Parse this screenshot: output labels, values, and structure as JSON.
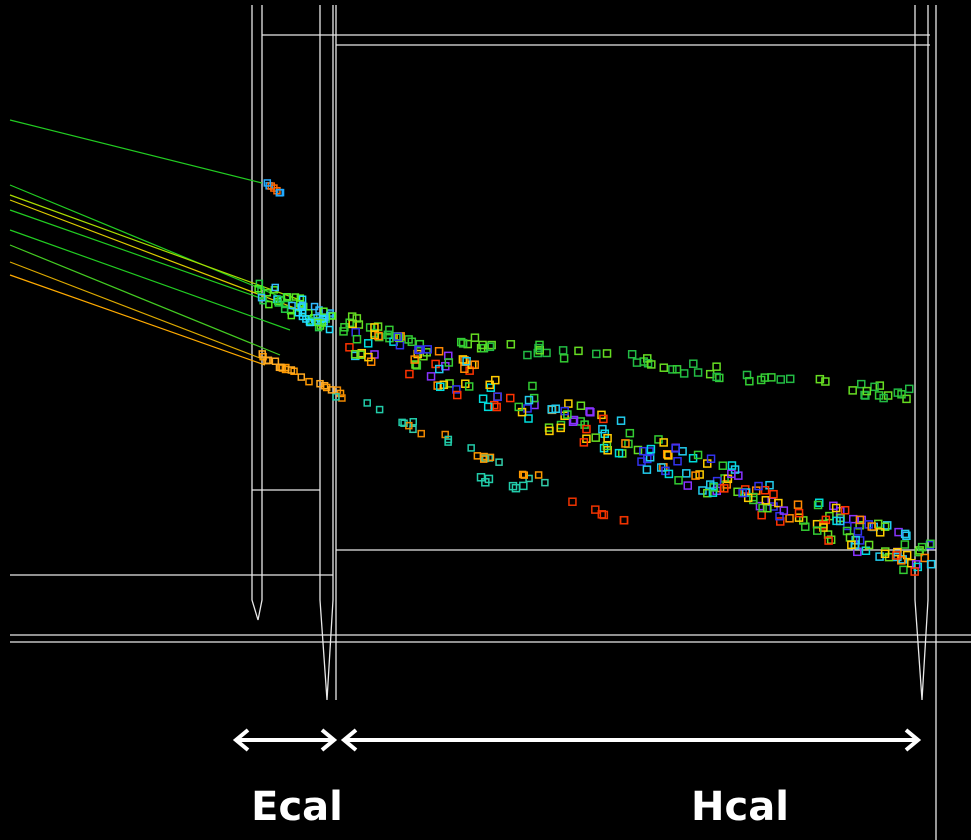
{
  "labels": {
    "ecal": "Ecal",
    "hcal": "Hcal"
  }
}
